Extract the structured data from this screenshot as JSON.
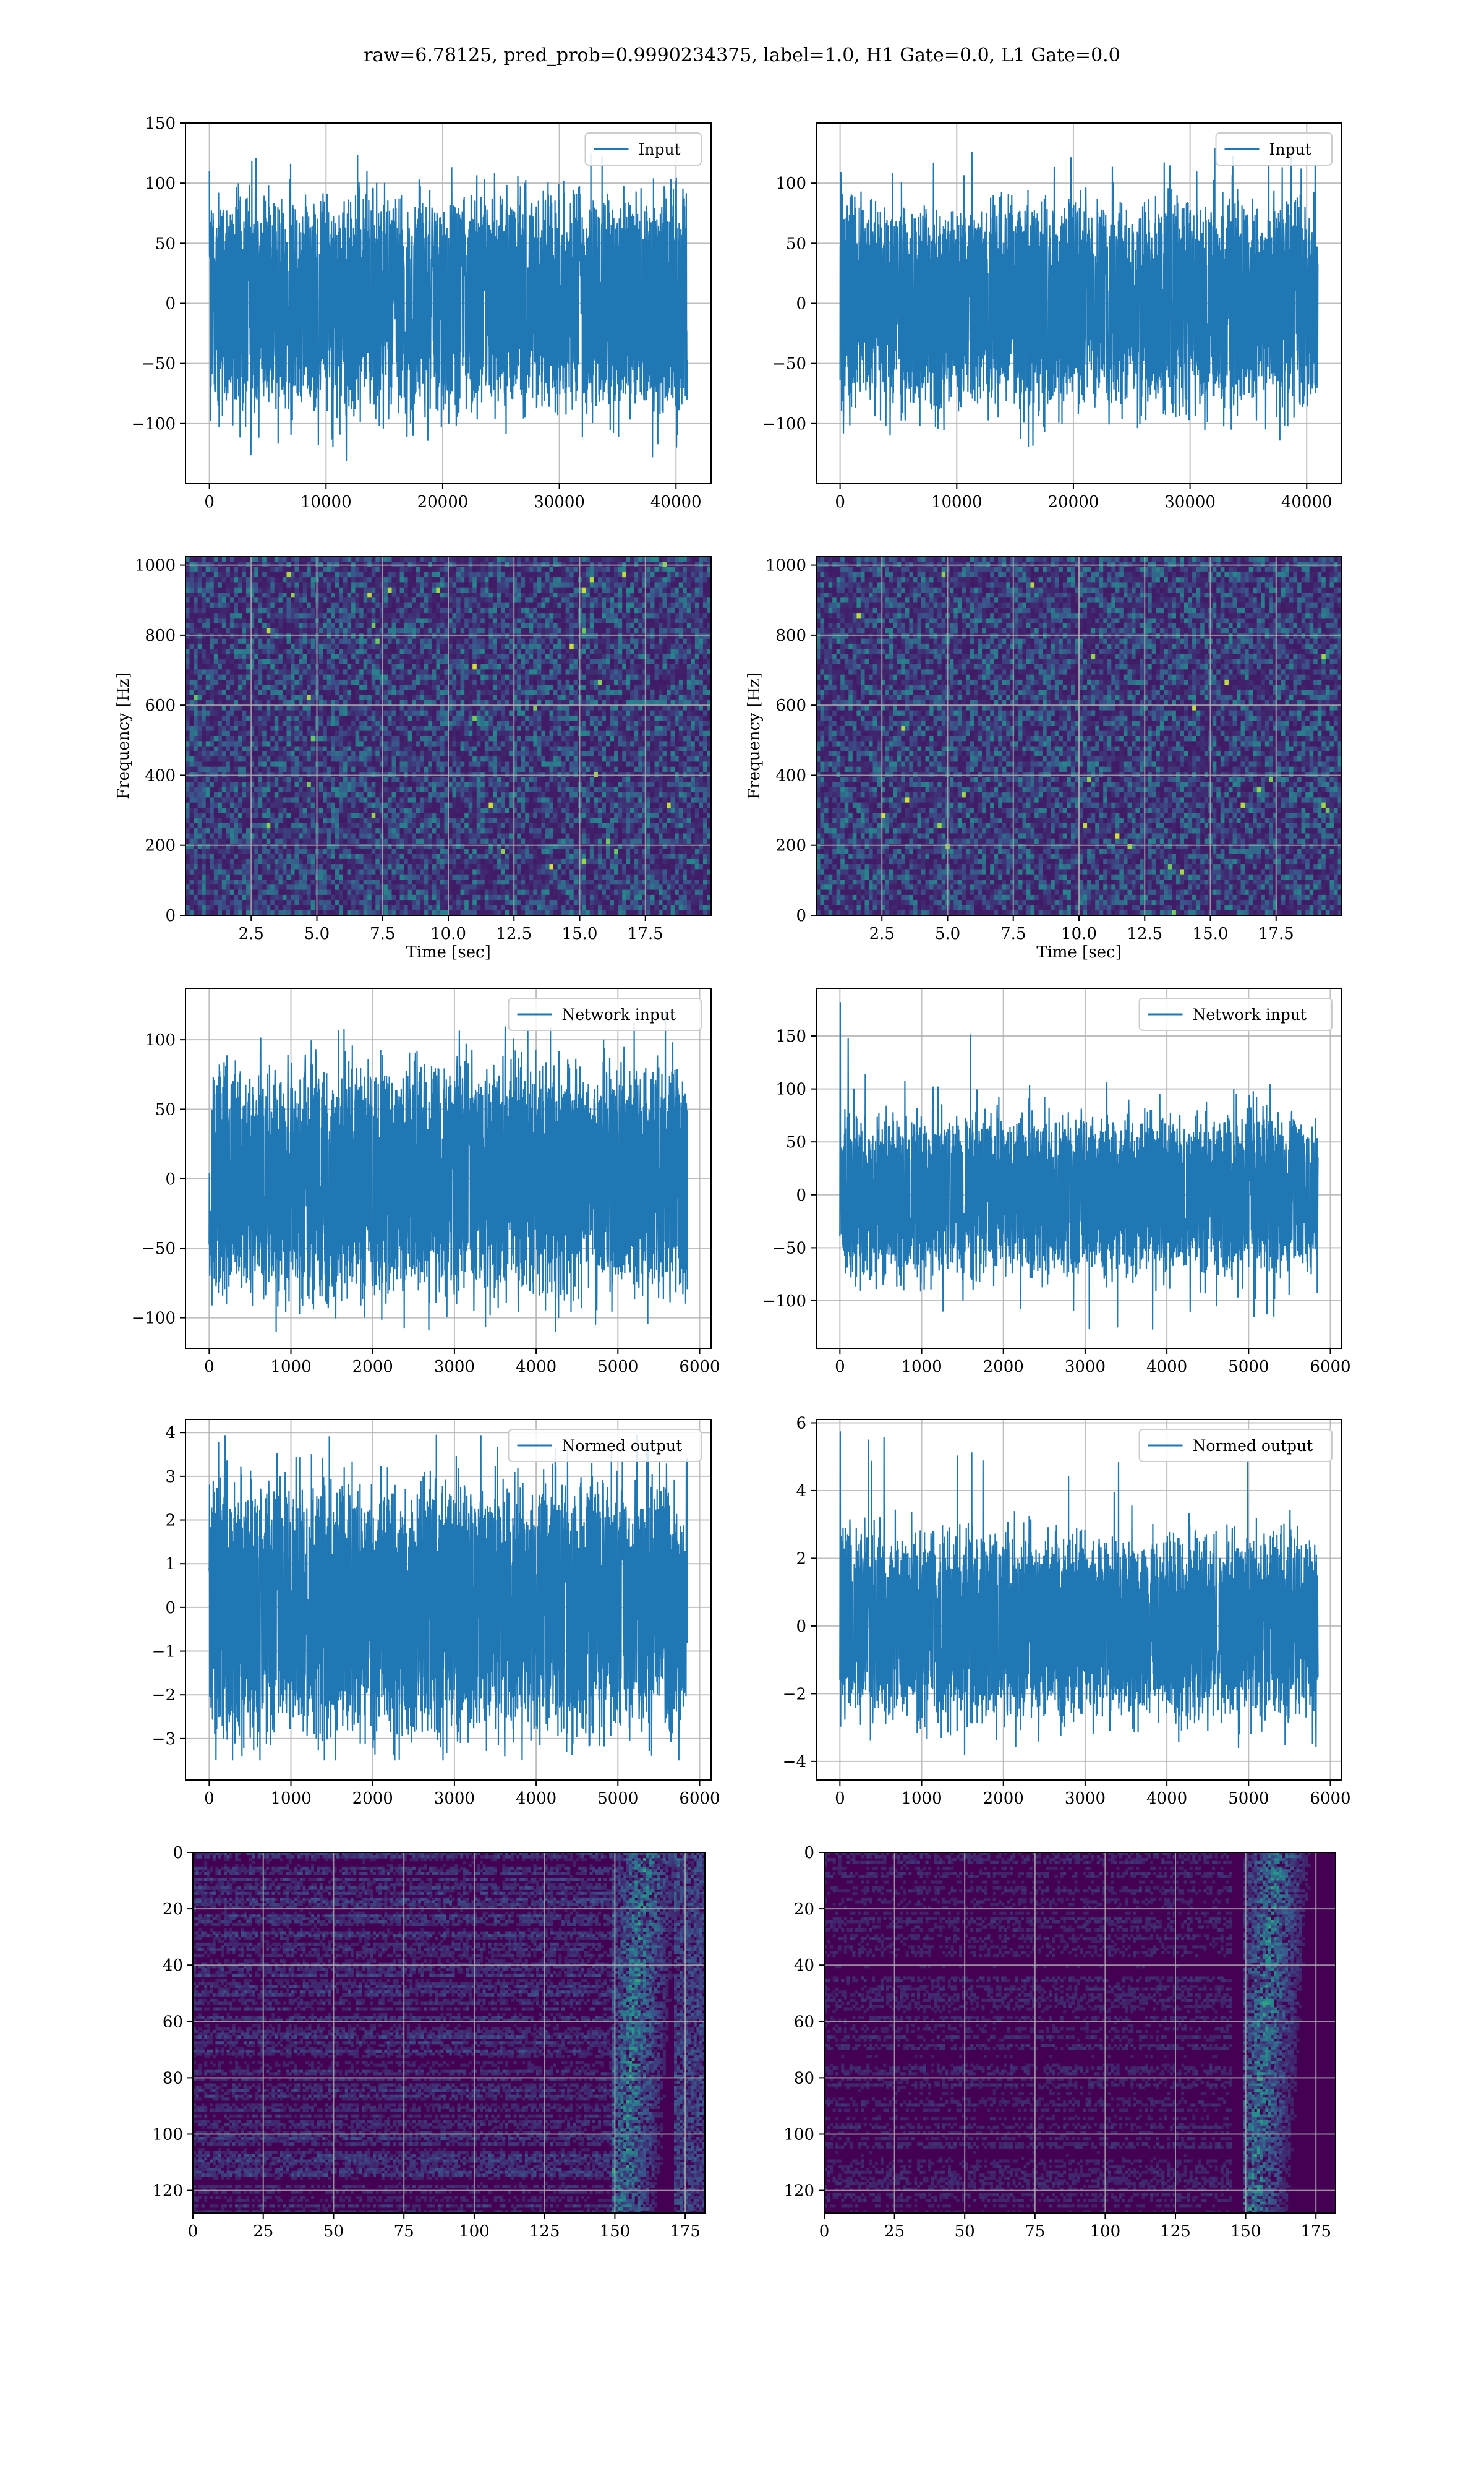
{
  "suptitle": "raw=6.78125, pred_prob=0.9990234375, label=1.0, H1 Gate=0.0, L1 Gate=0.0",
  "colors": {
    "line": "#1f77b4",
    "grid": "#b0b0b0",
    "spec_bg": "#3b1b5f"
  },
  "chart_data": [
    {
      "id": "h1-input",
      "type": "line",
      "series": [
        {
          "name": "Input",
          "n": 40960,
          "amplitude": 26,
          "peaks": [
            -135,
            128
          ]
        }
      ],
      "xlim": [
        -2048,
        43008
      ],
      "ylim": [
        -150,
        150
      ],
      "xticks": [
        0,
        10000,
        20000,
        30000,
        40000
      ],
      "xticklabels": [
        "0",
        "10000",
        "20000",
        "30000",
        "40000"
      ],
      "yticks": [
        -100,
        -50,
        0,
        50,
        100,
        150
      ],
      "yticklabels": [
        "−100",
        "−50",
        "0",
        "50",
        "100",
        "150"
      ],
      "xlabel": "",
      "ylabel": "",
      "legend": "upper right",
      "grid": true
    },
    {
      "id": "l1-input",
      "type": "line",
      "series": [
        {
          "name": "Input",
          "n": 40960,
          "amplitude": 25,
          "peaks": [
            -125,
            130
          ]
        }
      ],
      "xlim": [
        -2048,
        43008
      ],
      "ylim": [
        -150,
        150
      ],
      "xticks": [
        0,
        10000,
        20000,
        30000,
        40000
      ],
      "xticklabels": [
        "0",
        "10000",
        "20000",
        "30000",
        "40000"
      ],
      "yticks": [
        -100,
        -50,
        0,
        50,
        100
      ],
      "yticklabels": [
        "−100",
        "−50",
        "0",
        "50",
        "100"
      ],
      "xlabel": "",
      "ylabel": "",
      "legend": "upper right",
      "grid": true
    },
    {
      "id": "h1-spectrogram",
      "type": "heatmap",
      "colormap": "viridis",
      "xlim": [
        0,
        20
      ],
      "ylim": [
        0,
        1024
      ],
      "xticks": [
        2.5,
        5,
        7.5,
        10,
        12.5,
        15,
        17.5
      ],
      "xticklabels": [
        "2.5",
        "5.0",
        "7.5",
        "10.0",
        "12.5",
        "15.0",
        "17.5"
      ],
      "yticks": [
        0,
        200,
        400,
        600,
        800,
        1000
      ],
      "yticklabels": [
        "0",
        "200",
        "400",
        "600",
        "800",
        "1000"
      ],
      "xlabel": "Time [sec]",
      "ylabel": "Frequency [Hz]",
      "grid": true
    },
    {
      "id": "l1-spectrogram",
      "type": "heatmap",
      "colormap": "viridis",
      "xlim": [
        0,
        20
      ],
      "ylim": [
        0,
        1024
      ],
      "xticks": [
        2.5,
        5,
        7.5,
        10,
        12.5,
        15,
        17.5
      ],
      "xticklabels": [
        "2.5",
        "5.0",
        "7.5",
        "10.0",
        "12.5",
        "15.0",
        "17.5"
      ],
      "yticks": [
        0,
        200,
        400,
        600,
        800,
        1000
      ],
      "yticklabels": [
        "0",
        "200",
        "400",
        "600",
        "800",
        "1000"
      ],
      "xlabel": "Time [sec]",
      "ylabel": "Frequency [Hz]",
      "grid": true
    },
    {
      "id": "h1-network-input",
      "type": "line",
      "series": [
        {
          "name": "Network input",
          "n": 5850,
          "amplitude": 24,
          "peaks": [
            -110,
            125
          ]
        }
      ],
      "xlim": [
        -290,
        6140
      ],
      "ylim": [
        -122,
        137
      ],
      "xticks": [
        0,
        1000,
        2000,
        3000,
        4000,
        5000,
        6000
      ],
      "xticklabels": [
        "0",
        "1000",
        "2000",
        "3000",
        "4000",
        "5000",
        "6000"
      ],
      "yticks": [
        -100,
        -50,
        0,
        50,
        100
      ],
      "yticklabels": [
        "−100",
        "−50",
        "0",
        "50",
        "100"
      ],
      "xlabel": "",
      "ylabel": "",
      "legend": "upper right",
      "grid": true
    },
    {
      "id": "l1-network-input",
      "type": "line",
      "series": [
        {
          "name": "Network input",
          "n": 5850,
          "amplitude": 22,
          "peaks": [
            -128,
            182
          ]
        }
      ],
      "xlim": [
        -290,
        6140
      ],
      "ylim": [
        -145,
        195
      ],
      "xticks": [
        0,
        1000,
        2000,
        3000,
        4000,
        5000,
        6000
      ],
      "xticklabels": [
        "0",
        "1000",
        "2000",
        "3000",
        "4000",
        "5000",
        "6000"
      ],
      "yticks": [
        -100,
        -50,
        0,
        50,
        100,
        150
      ],
      "yticklabels": [
        "−100",
        "−50",
        "0",
        "50",
        "100",
        "150"
      ],
      "xlabel": "",
      "ylabel": "",
      "legend": "upper right",
      "grid": true
    },
    {
      "id": "h1-normed-output",
      "type": "line",
      "series": [
        {
          "name": "Normed output",
          "n": 5850,
          "amplitude": 0.85,
          "peaks": [
            -3.5,
            3.95
          ]
        }
      ],
      "xlim": [
        -290,
        6140
      ],
      "ylim": [
        -3.95,
        4.3
      ],
      "xticks": [
        0,
        1000,
        2000,
        3000,
        4000,
        5000,
        6000
      ],
      "xticklabels": [
        "0",
        "1000",
        "2000",
        "3000",
        "4000",
        "5000",
        "6000"
      ],
      "yticks": [
        -3,
        -2,
        -1,
        0,
        1,
        2,
        3,
        4
      ],
      "yticklabels": [
        "−3",
        "−2",
        "−1",
        "0",
        "1",
        "2",
        "3",
        "4"
      ],
      "xlabel": "",
      "ylabel": "",
      "legend": "upper right",
      "grid": true
    },
    {
      "id": "l1-normed-output",
      "type": "line",
      "series": [
        {
          "name": "Normed output",
          "n": 5850,
          "amplitude": 0.8,
          "peaks": [
            -4.1,
            5.75
          ]
        }
      ],
      "xlim": [
        -290,
        6140
      ],
      "ylim": [
        -4.55,
        6.1
      ],
      "xticks": [
        0,
        1000,
        2000,
        3000,
        4000,
        5000,
        6000
      ],
      "xticklabels": [
        "0",
        "1000",
        "2000",
        "3000",
        "4000",
        "5000",
        "6000"
      ],
      "yticks": [
        -4,
        -2,
        0,
        2,
        4,
        6
      ],
      "yticklabels": [
        "−4",
        "−2",
        "0",
        "2",
        "4",
        "6"
      ],
      "xlabel": "",
      "ylabel": "",
      "legend": "upper right",
      "grid": true
    },
    {
      "id": "h1-feature-map",
      "type": "heatmap",
      "colormap": "viridis",
      "xlim": [
        0,
        182
      ],
      "ylim": [
        128,
        0
      ],
      "xticks": [
        0,
        25,
        50,
        75,
        100,
        125,
        150,
        175
      ],
      "xticklabels": [
        "0",
        "25",
        "50",
        "75",
        "100",
        "125",
        "150",
        "175"
      ],
      "yticks": [
        0,
        20,
        40,
        60,
        80,
        100,
        120
      ],
      "yticklabels": [
        "0",
        "20",
        "40",
        "60",
        "80",
        "100",
        "120"
      ],
      "xlabel": "",
      "ylabel": "",
      "grid": true
    },
    {
      "id": "l1-feature-map",
      "type": "heatmap",
      "colormap": "viridis",
      "xlim": [
        0,
        182
      ],
      "ylim": [
        128,
        0
      ],
      "xticks": [
        0,
        25,
        50,
        75,
        100,
        125,
        150,
        175
      ],
      "xticklabels": [
        "0",
        "25",
        "50",
        "75",
        "100",
        "125",
        "150",
        "175"
      ],
      "yticks": [
        0,
        20,
        40,
        60,
        80,
        100,
        120
      ],
      "yticklabels": [
        "0",
        "20",
        "40",
        "60",
        "80",
        "100",
        "120"
      ],
      "xlabel": "",
      "ylabel": "",
      "grid": true
    }
  ]
}
